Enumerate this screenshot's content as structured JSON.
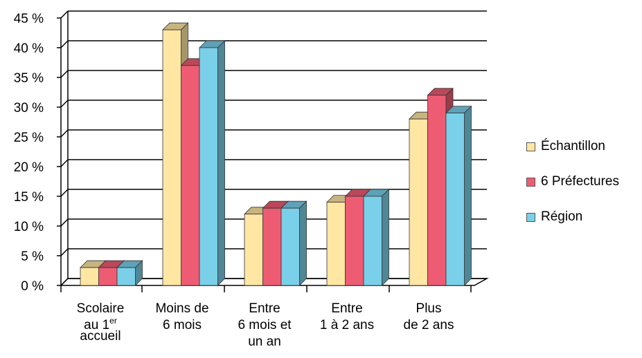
{
  "chart_data": {
    "type": "bar",
    "title": "",
    "xlabel": "",
    "ylabel": "",
    "ylim": [
      0,
      45
    ],
    "y_ticks": [
      0,
      5,
      10,
      15,
      20,
      25,
      30,
      35,
      40,
      45
    ],
    "y_tick_suffix": " %",
    "grid": true,
    "legend_position": "right",
    "categories": [
      {
        "lines": [
          "Scolaire",
          "au 1er",
          "accueil"
        ],
        "superscript": "er"
      },
      {
        "lines": [
          "Moins de",
          "6 mois"
        ]
      },
      {
        "lines": [
          "Entre",
          "6 mois et",
          "un an"
        ]
      },
      {
        "lines": [
          "Entre",
          "1 à 2 ans"
        ]
      },
      {
        "lines": [
          "Plus",
          "de 2 ans"
        ]
      }
    ],
    "series": [
      {
        "name": "Échantillon",
        "color": "#FFE7A3",
        "values": [
          3,
          43,
          12,
          14,
          28
        ]
      },
      {
        "name": "6 Préfectures",
        "color": "#EE5C74",
        "values": [
          3,
          37,
          13,
          15,
          32
        ]
      },
      {
        "name": "Région",
        "color": "#7ACFE9",
        "values": [
          3,
          40,
          13,
          15,
          29
        ]
      }
    ]
  }
}
